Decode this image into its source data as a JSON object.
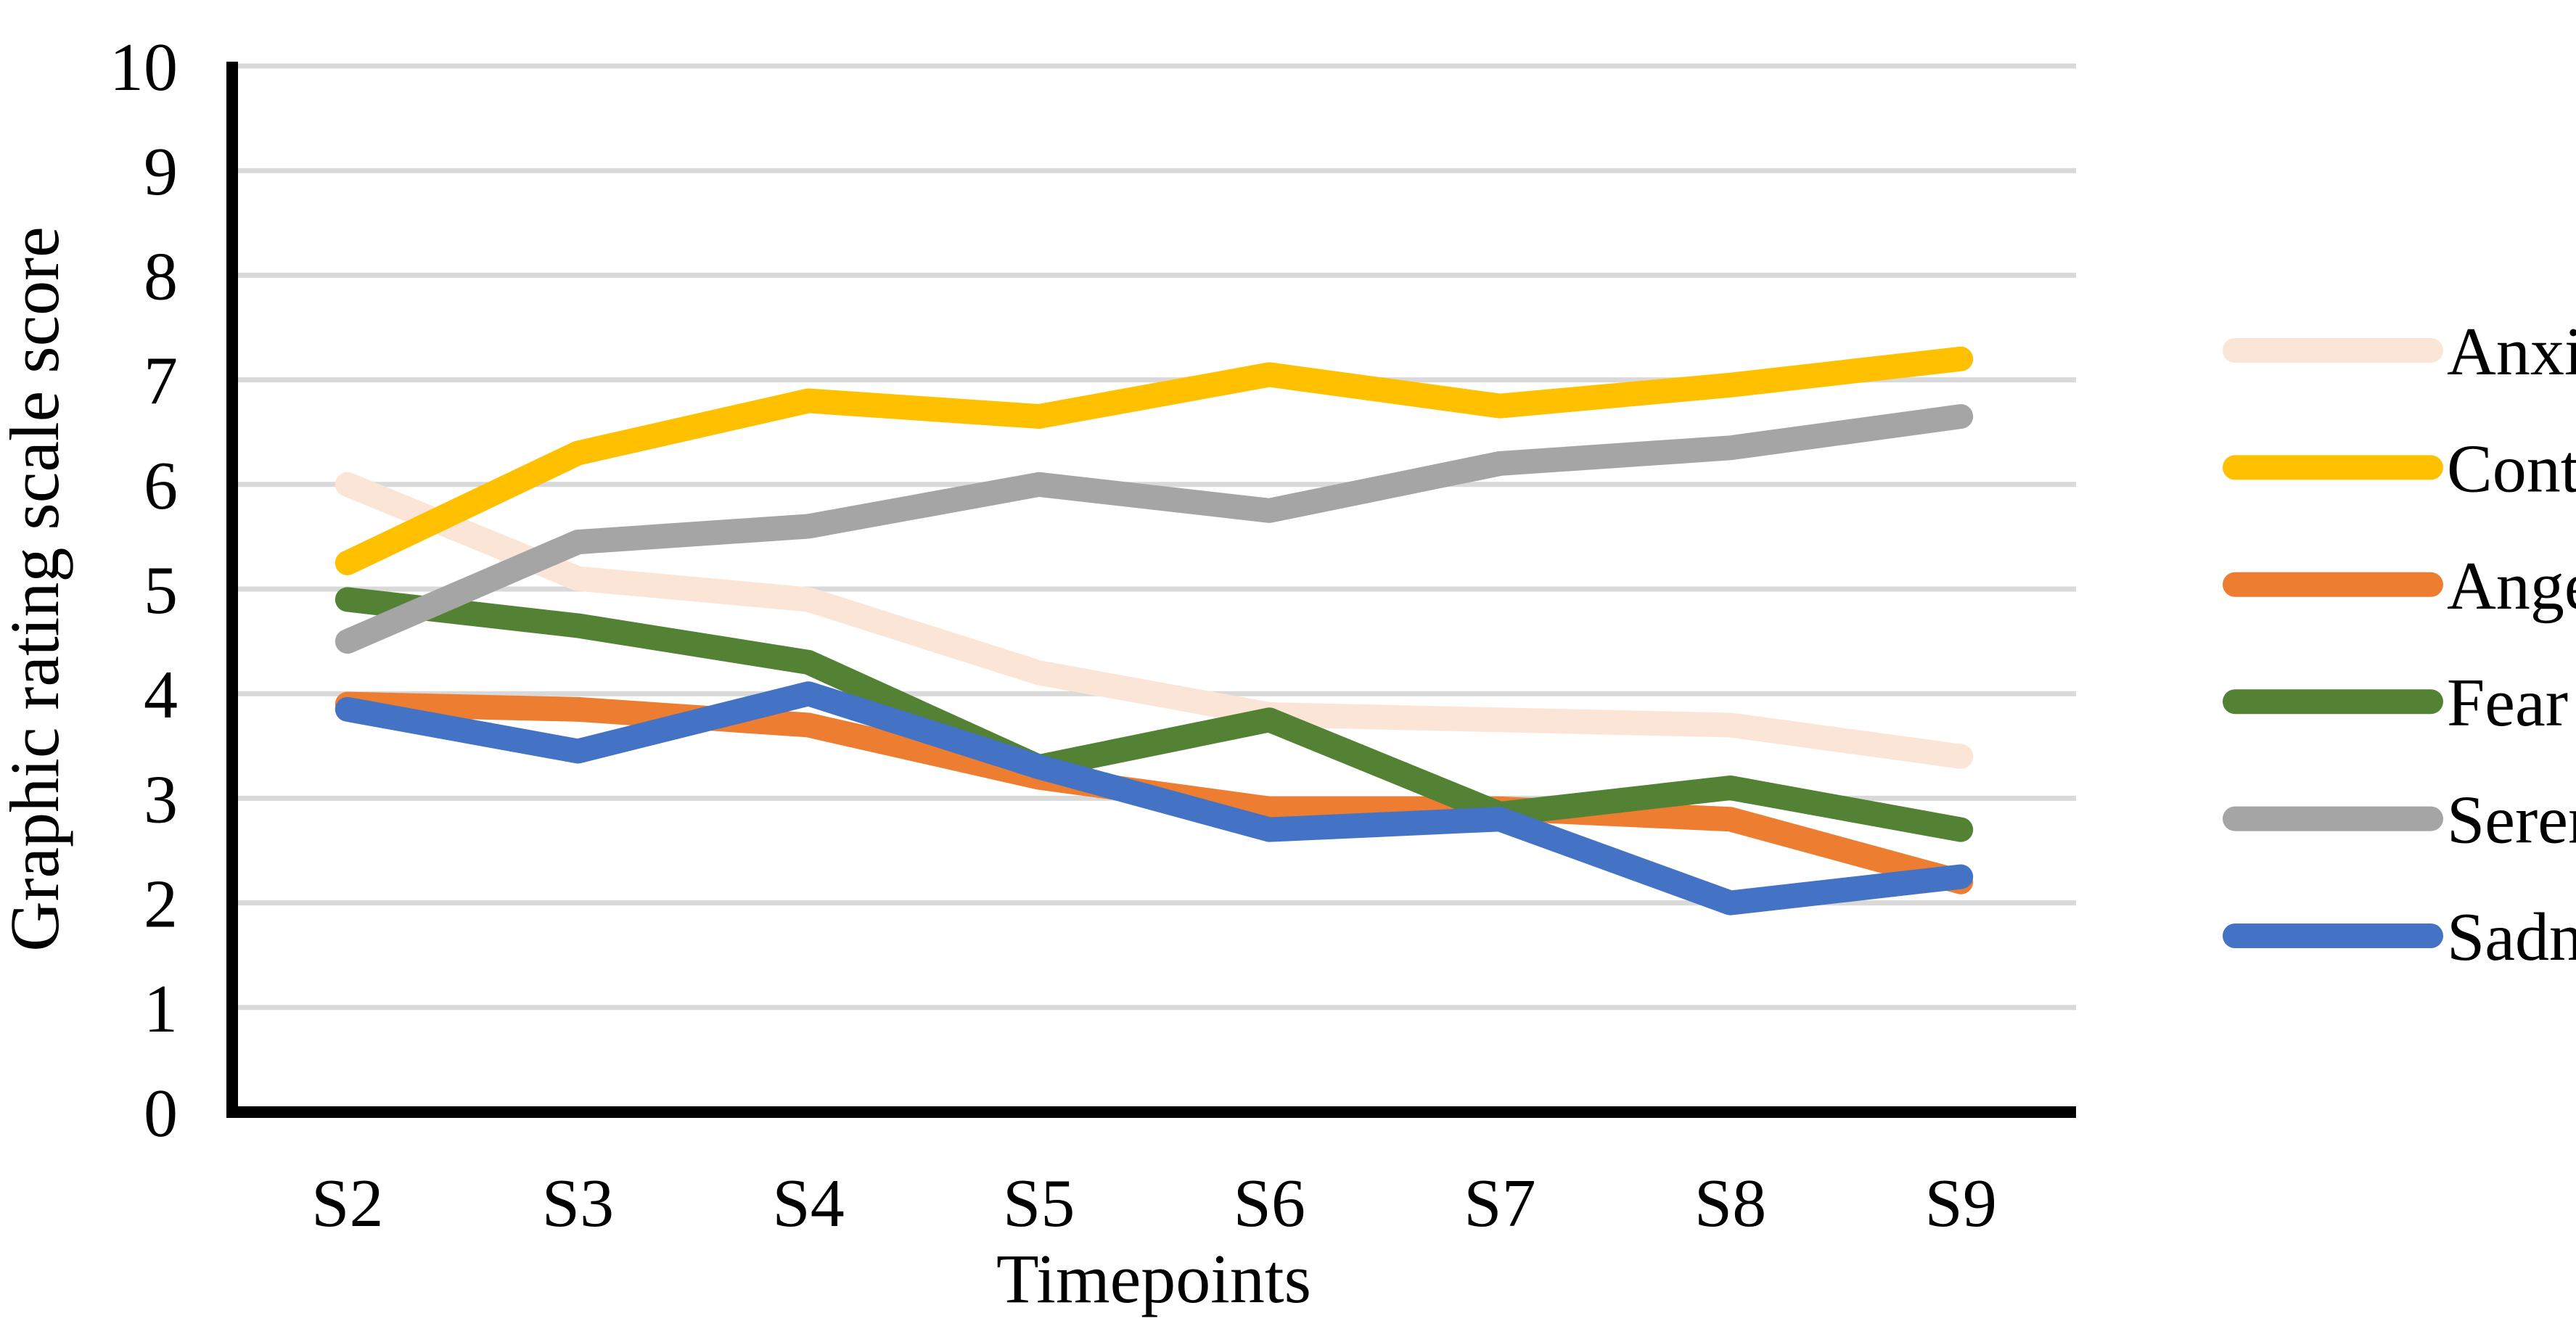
{
  "chart_data": {
    "type": "line",
    "categories": [
      "S2",
      "S3",
      "S4",
      "S5",
      "S6",
      "S7",
      "S8",
      "S9"
    ],
    "series": [
      {
        "name": "Anxiety",
        "color": "#FBE5D6",
        "values": [
          6.0,
          5.1,
          4.9,
          4.2,
          3.8,
          3.75,
          3.7,
          3.4
        ]
      },
      {
        "name": "Control",
        "color": "#FFC000",
        "values": [
          5.25,
          6.3,
          6.8,
          6.65,
          7.05,
          6.75,
          6.95,
          7.2
        ]
      },
      {
        "name": "Anger",
        "color": "#ED7D31",
        "values": [
          3.9,
          3.85,
          3.7,
          3.2,
          2.9,
          2.9,
          2.8,
          2.2
        ]
      },
      {
        "name": "Fear",
        "color": "#548235",
        "values": [
          4.9,
          4.65,
          4.3,
          3.3,
          3.75,
          2.85,
          3.1,
          2.7
        ]
      },
      {
        "name": "Serenity",
        "color": "#A5A5A5",
        "values": [
          4.5,
          5.45,
          5.6,
          6.0,
          5.75,
          6.2,
          6.35,
          6.65
        ]
      },
      {
        "name": "Sadness",
        "color": "#4472C4",
        "values": [
          3.85,
          3.45,
          4.0,
          3.3,
          2.7,
          2.8,
          2.0,
          2.25
        ]
      }
    ],
    "xlabel": "Timepoints",
    "ylabel": "Graphic rating scale score",
    "ylim": [
      0,
      10
    ],
    "yticks": [
      0,
      1,
      2,
      3,
      4,
      5,
      6,
      7,
      8,
      9,
      10
    ],
    "grid": true,
    "legend_position": "right"
  },
  "colors": {
    "gridline": "#D9D9D9",
    "axis": "#000000",
    "background": "#FFFFFF"
  }
}
